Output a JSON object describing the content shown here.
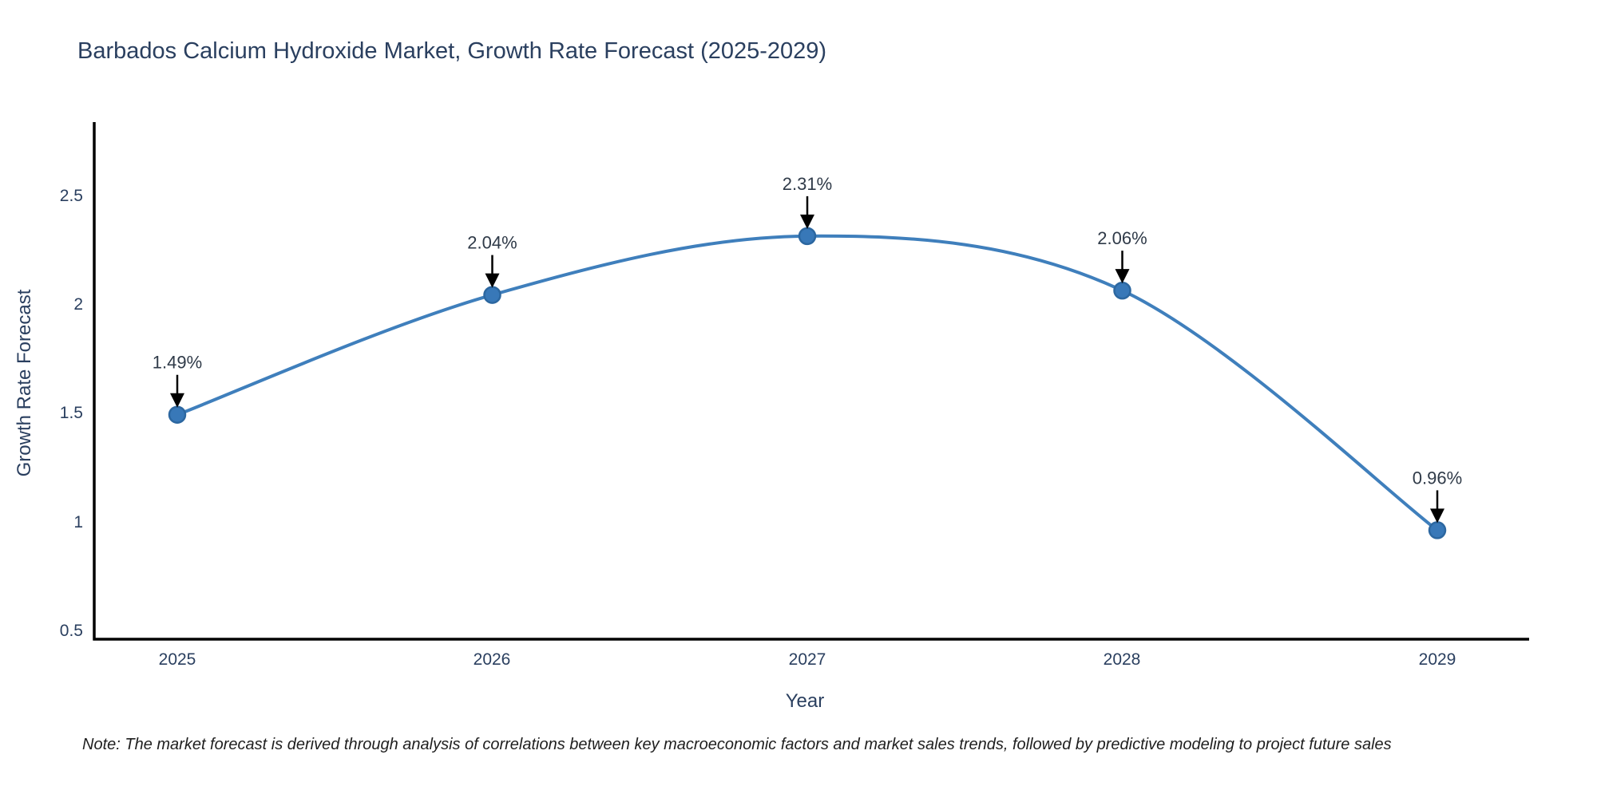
{
  "page": {
    "title": "Barbados Calcium Hydroxide Market, Growth Rate Forecast (2025-2029)",
    "note": "Note: The market forecast is derived through analysis of correlations between key macroeconomic factors and market sales trends, followed by predictive modeling to project future sales"
  },
  "chart_data": {
    "type": "line",
    "title": "Barbados Calcium Hydroxide Market, Growth Rate Forecast (2025-2029)",
    "xlabel": "Year",
    "ylabel": "Growth Rate Forecast",
    "categories": [
      "2025",
      "2026",
      "2027",
      "2028",
      "2029"
    ],
    "series": [
      {
        "name": "Growth Rate Forecast",
        "values": [
          1.49,
          2.04,
          2.31,
          2.06,
          0.96
        ],
        "labels": [
          "1.49%",
          "2.04%",
          "2.31%",
          "2.06%",
          "0.96%"
        ]
      }
    ],
    "yticks": [
      "0.5",
      "1",
      "1.5",
      "2",
      "2.5"
    ],
    "ylim": [
      0.45,
      2.85
    ],
    "line_shape": "spline",
    "grid": false,
    "legend": false,
    "annotation_arrows": true,
    "colors": {
      "line": "#3f7fbc",
      "marker_fill": "#3878b8",
      "marker_stroke": "#2c67a0",
      "text": "#2a3f5f",
      "annotation_text": "#2f3a48",
      "axis": "#000000",
      "arrow": "#000000",
      "background": "#ffffff"
    }
  }
}
